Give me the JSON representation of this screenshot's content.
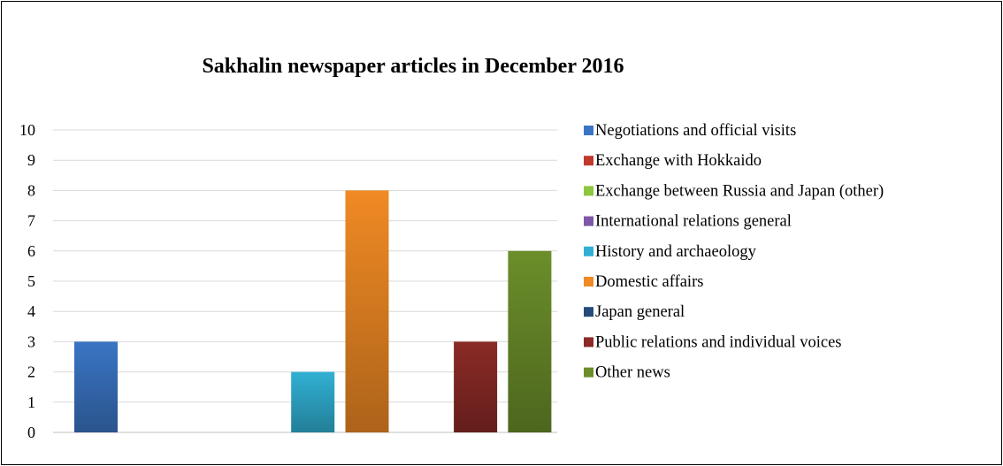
{
  "chart_data": {
    "type": "bar",
    "title": "Sakhalin newspaper articles in December 2016",
    "xlabel": "",
    "ylabel": "",
    "ylim": [
      0,
      10
    ],
    "yticks": [
      "0",
      "1",
      "2",
      "3",
      "4",
      "5",
      "6",
      "7",
      "8",
      "9",
      "10"
    ],
    "grid": true,
    "legend_position": "right",
    "series": [
      {
        "name": "Negotiations and official visits",
        "value": 3,
        "color": "#3a75c4"
      },
      {
        "name": "Exchange with Hokkaido",
        "value": 0,
        "color": "#c0392b"
      },
      {
        "name": "Exchange between Russia and Japan (other)",
        "value": 0,
        "color": "#8dc63f"
      },
      {
        "name": "International relations general",
        "value": 0,
        "color": "#7e57a8"
      },
      {
        "name": "History and archaeology",
        "value": 2,
        "color": "#31b0d3"
      },
      {
        "name": "Domestic affairs",
        "value": 8,
        "color": "#f08a24"
      },
      {
        "name": "Japan general",
        "value": 0,
        "color": "#254b7c"
      },
      {
        "name": "Public relations and individual voices",
        "value": 3,
        "color": "#8b2a26"
      },
      {
        "name": "Other news",
        "value": 6,
        "color": "#6b8e2a"
      }
    ]
  }
}
